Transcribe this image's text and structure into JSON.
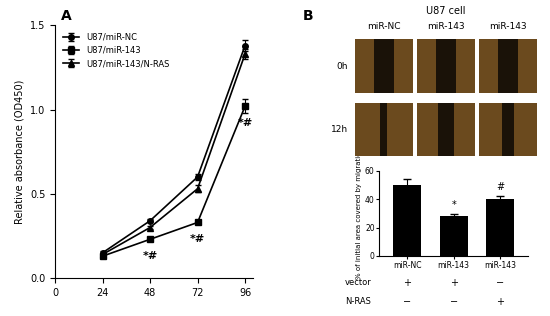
{
  "panel_labels": [
    "A",
    "B"
  ],
  "chart_data": [
    {
      "type": "line",
      "x": [
        24,
        48,
        72,
        96
      ],
      "xlim": [
        0,
        100
      ],
      "xticks": [
        0,
        24,
        48,
        72,
        96
      ],
      "ylim": [
        0,
        1.5
      ],
      "yticks": [
        {
          "value": 0,
          "label": "0.0"
        },
        {
          "value": 0.5,
          "label": "0.5"
        },
        {
          "value": 1.0,
          "label": "1.0"
        },
        {
          "value": 1.5,
          "label": "1.5"
        }
      ],
      "y_label": "Relative absorbance (OD450)",
      "legend": "upper left",
      "series": [
        {
          "name": "U87/miR-NC",
          "color": "#000000",
          "marker": "circle",
          "line_style": "solid",
          "values": [
            0.15,
            0.34,
            0.6,
            1.38
          ],
          "errors": [
            0.01,
            0.01,
            0.02,
            0.03
          ]
        },
        {
          "name": "U87/miR-143",
          "color": "#000000",
          "marker": "square",
          "line_style": "solid",
          "values": [
            0.13,
            0.23,
            0.33,
            1.02
          ],
          "errors": [
            0.01,
            0.01,
            0.01,
            0.04
          ]
        },
        {
          "name": "U87/miR-143/N-RAS",
          "color": "#000000",
          "marker": "triangle",
          "line_style": "solid",
          "values": [
            0.14,
            0.3,
            0.53,
            1.33
          ],
          "errors": [
            0.01,
            0.01,
            0.02,
            0.03
          ]
        }
      ],
      "annotations": [
        {
          "series": "U87/miR-143",
          "x": 48,
          "text": "*#"
        },
        {
          "series": "U87/miR-143",
          "x": 72,
          "text": "*#"
        },
        {
          "series": "U87/miR-143",
          "x": 96,
          "text": "*#"
        }
      ]
    },
    {
      "type": "bar",
      "categories": [
        "miR-NC",
        "miR-143",
        "miR-143"
      ],
      "values": [
        50,
        28,
        40
      ],
      "errors": [
        4,
        1.5,
        2
      ],
      "color": "#000000",
      "ylim": [
        0,
        60
      ],
      "yticks": [
        0,
        20,
        40,
        60
      ],
      "y_label": "% of initial area covered by migration",
      "annotations": [
        {
          "category_index": 1,
          "text": "*"
        },
        {
          "category_index": 2,
          "text": "#"
        }
      ],
      "table": {
        "rows": [
          {
            "label": "vector",
            "cells": [
              "+",
              "+",
              "−"
            ]
          },
          {
            "label": "N-RAS",
            "cells": [
              "−",
              "−",
              "+"
            ]
          }
        ]
      }
    }
  ],
  "image_grid": {
    "title": "U87 cell",
    "columns": [
      "miR-NC",
      "miR-143",
      "miR-143"
    ],
    "rows": [
      "0h",
      "12h"
    ]
  }
}
